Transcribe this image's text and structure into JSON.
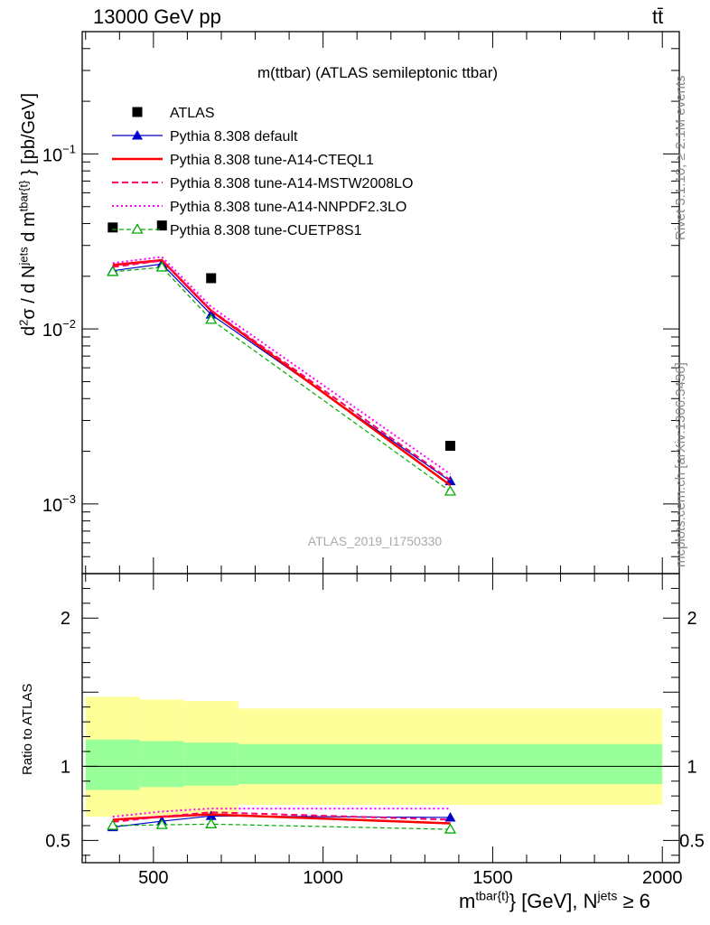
{
  "header": {
    "left": "13000 GeV pp",
    "right": "tt̄"
  },
  "side_text": {
    "top": "Rivet 3.1.10, ≥ 2.1M events",
    "bottom": "mcplots.cern.ch [arXiv:1306.3436]"
  },
  "colors": {
    "atlas": "#000000",
    "default": "#0000cc",
    "cteql1": "#ff0000",
    "mstw": "#ff0066",
    "nnpdf": "#ff00ff",
    "cuetp": "#00aa00",
    "band_outer": "#ffff99",
    "band_inner": "#99ff99"
  },
  "chart_data": [
    {
      "type": "scatter",
      "title": "m(ttbar) (ATLAS semileptonic ttbar)",
      "watermark": "ATLAS_2019_I1750330",
      "ylabel": "d²σ / d N^jets d m^tbar{t} [pb/GeV]",
      "yscale": "log",
      "ylim": [
        0.0004,
        0.5
      ],
      "xlim": [
        290,
        2050
      ],
      "yticks": [
        {
          "value": 0.1,
          "base": "10",
          "exp": "−1"
        },
        {
          "value": 0.01,
          "base": "10",
          "exp": "−2"
        },
        {
          "value": 0.001,
          "base": "10",
          "exp": "−3"
        }
      ],
      "x": [
        380,
        525,
        670,
        1375
      ],
      "series": [
        {
          "name": "ATLAS",
          "key": "atlas",
          "marker": "square",
          "values": [
            0.038,
            0.039,
            0.0195,
            0.00215
          ]
        },
        {
          "name": "Pythia 8.308 default",
          "key": "default",
          "marker": "triangle",
          "dash": "",
          "width": 1.2,
          "values": [
            0.0215,
            0.0235,
            0.0121,
            0.00135
          ]
        },
        {
          "name": "Pythia 8.308 tune-A14-CTEQL1",
          "key": "cteql1",
          "marker": "",
          "dash": "",
          "width": 2.5,
          "values": [
            0.0232,
            0.0247,
            0.0127,
            0.00128
          ]
        },
        {
          "name": "Pythia 8.308 tune-A14-MSTW2008LO",
          "key": "mstw",
          "marker": "",
          "dash": "7,4",
          "width": 2,
          "values": [
            0.0226,
            0.0246,
            0.0128,
            0.00137
          ]
        },
        {
          "name": "Pythia 8.308 tune-A14-NNPDF2.3LO",
          "key": "nnpdf",
          "marker": "",
          "dash": "2,3",
          "width": 2,
          "values": [
            0.0238,
            0.0258,
            0.0134,
            0.00148
          ]
        },
        {
          "name": "Pythia 8.308 tune-CUETP8S1",
          "key": "cuetp",
          "marker": "open-triangle",
          "dash": "5,3",
          "width": 1.2,
          "values": [
            0.0212,
            0.0225,
            0.0113,
            0.00118
          ]
        }
      ]
    },
    {
      "type": "line",
      "ylabel": "Ratio to ATLAS",
      "xlabel": "m^tbar{t} [GeV], N^jets ≥ 6",
      "ylim": [
        0.35,
        2.3
      ],
      "xlim": [
        290,
        2050
      ],
      "yticks": [
        0.5,
        1,
        2
      ],
      "xticks": [
        500,
        1000,
        1500,
        2000
      ],
      "bands": [
        {
          "x0": 300,
          "x1": 460,
          "outer": [
            0.66,
            1.47
          ],
          "inner": [
            0.84,
            1.18
          ]
        },
        {
          "x0": 460,
          "x1": 590,
          "outer": [
            0.67,
            1.45
          ],
          "inner": [
            0.86,
            1.17
          ]
        },
        {
          "x0": 590,
          "x1": 750,
          "outer": [
            0.68,
            1.44
          ],
          "inner": [
            0.87,
            1.16
          ]
        },
        {
          "x0": 750,
          "x1": 2000,
          "outer": [
            0.74,
            1.39
          ],
          "inner": [
            0.88,
            1.15
          ]
        }
      ],
      "x": [
        380,
        525,
        670,
        1375
      ],
      "series": [
        {
          "key": "default",
          "marker": "triangle",
          "dash": "",
          "width": 1.2,
          "values": [
            0.59,
            0.63,
            0.665,
            0.655
          ]
        },
        {
          "key": "cteql1",
          "marker": "",
          "dash": "",
          "width": 2.5,
          "values": [
            0.64,
            0.66,
            0.675,
            0.615
          ]
        },
        {
          "key": "mstw",
          "marker": "",
          "dash": "7,4",
          "width": 2,
          "values": [
            0.625,
            0.66,
            0.69,
            0.64
          ]
        },
        {
          "key": "nnpdf",
          "marker": "",
          "dash": "2,3",
          "width": 2,
          "values": [
            0.66,
            0.695,
            0.715,
            0.715
          ]
        },
        {
          "key": "cuetp",
          "marker": "open-triangle",
          "dash": "5,3",
          "width": 1.2,
          "values": [
            0.6,
            0.605,
            0.61,
            0.575
          ]
        }
      ]
    }
  ]
}
